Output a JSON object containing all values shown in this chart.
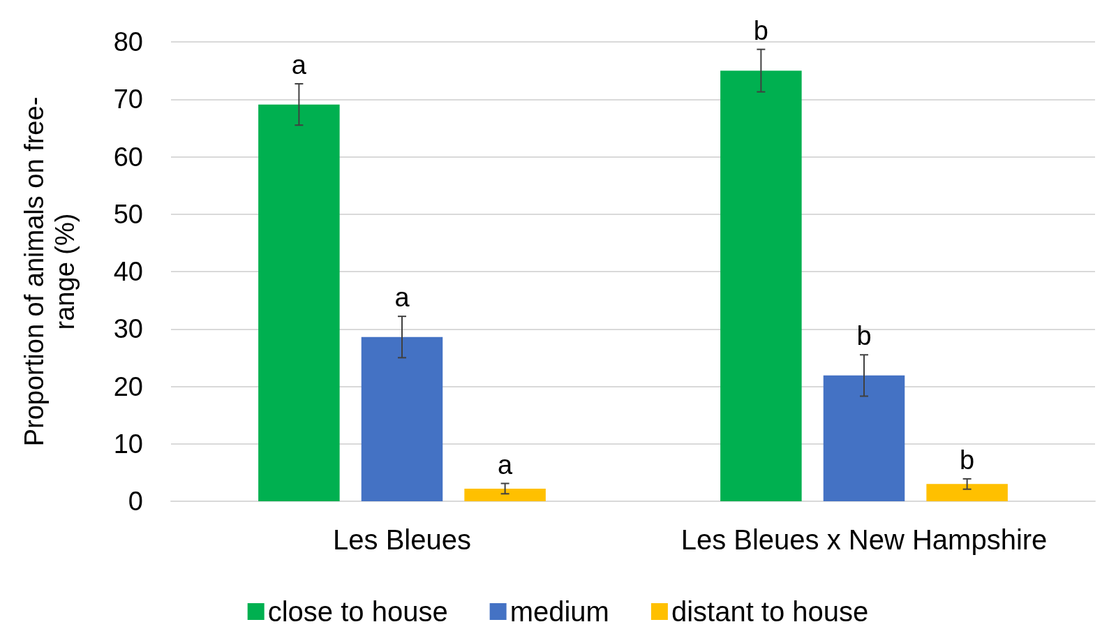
{
  "chart_data": {
    "type": "bar",
    "ylabel": "Proportion of animals on free-range (%)",
    "categories": [
      "Les Bleues",
      "Les Bleues x New Hampshire"
    ],
    "series": [
      {
        "name": "close to house",
        "color": "#00b050",
        "values": [
          69.1,
          75.0
        ],
        "errors": [
          3.6,
          3.7
        ],
        "value_labels": [
          "a",
          "b"
        ]
      },
      {
        "name": "medium",
        "color": "#4472c4",
        "values": [
          28.6,
          21.9
        ],
        "errors": [
          3.6,
          3.6
        ],
        "value_labels": [
          "a",
          "b"
        ]
      },
      {
        "name": "distant to house",
        "color": "#ffc000",
        "values": [
          2.2,
          3.0
        ],
        "errors": [
          0.9,
          0.9
        ],
        "value_labels": [
          "a",
          "b"
        ]
      }
    ],
    "ylim": [
      0,
      80
    ],
    "yticks": [
      0,
      10,
      20,
      30,
      40,
      50,
      60,
      70,
      80
    ],
    "grid": "y",
    "legend": "bottom"
  }
}
